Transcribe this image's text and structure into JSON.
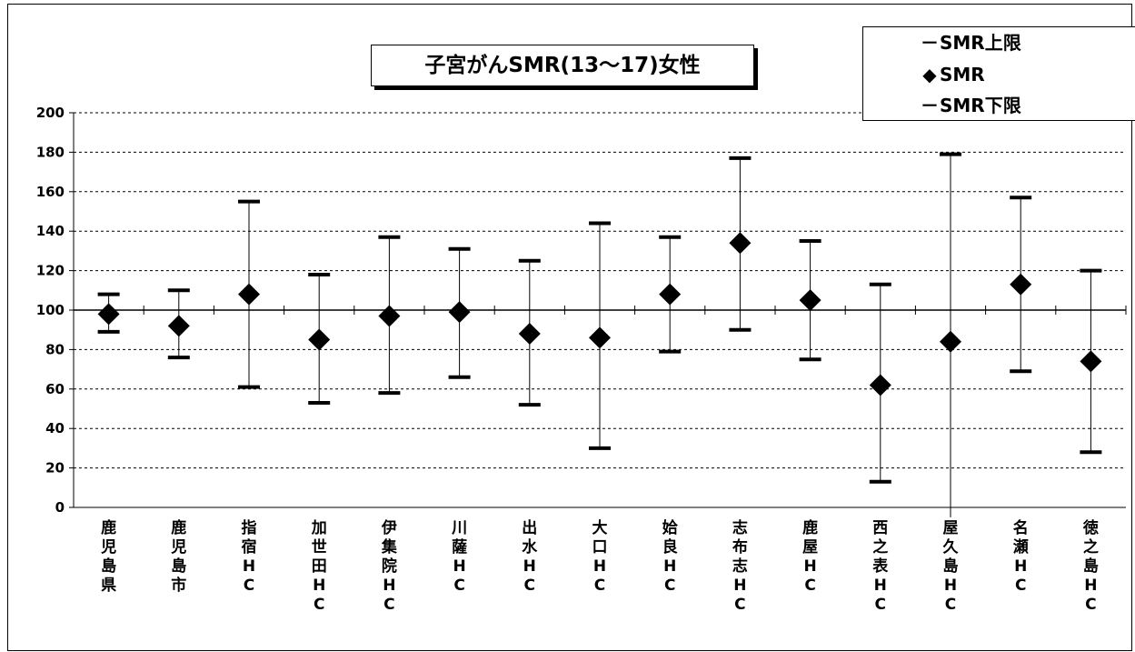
{
  "chart_data": {
    "type": "scatter",
    "title": "子宮がんSMR(13～17)女性",
    "categories": [
      "鹿児島県",
      "鹿児島市",
      "指宿HC",
      "加世田HC",
      "伊集院HC",
      "川薩HC",
      "出水HC",
      "大口HC",
      "姶良HC",
      "志布志HC",
      "鹿屋HC",
      "西之表HC",
      "屋久島HC",
      "名瀬HC",
      "徳之島HC"
    ],
    "series": [
      {
        "name": "SMR上限",
        "values": [
          108,
          110,
          155,
          118,
          137,
          131,
          125,
          144,
          137,
          177,
          135,
          113,
          179,
          157,
          120
        ]
      },
      {
        "name": "SMR",
        "values": [
          98,
          92,
          108,
          85,
          97,
          99,
          88,
          86,
          108,
          134,
          105,
          62,
          84,
          113,
          74
        ]
      },
      {
        "name": "SMR下限",
        "values": [
          89,
          76,
          61,
          53,
          58,
          66,
          52,
          30,
          79,
          90,
          75,
          13,
          -5,
          69,
          28
        ]
      }
    ],
    "ylim": [
      0,
      200
    ],
    "yticks": [
      "200",
      "180",
      "160",
      "140",
      "120",
      "100",
      "80",
      "60",
      "40",
      "20",
      "0"
    ],
    "reference_line": 100,
    "grid": "horizontal dashed",
    "legend_position": "top-right"
  },
  "legend": {
    "upper_symbol": "－",
    "smr_symbol": "◆",
    "lower_symbol": "－"
  }
}
